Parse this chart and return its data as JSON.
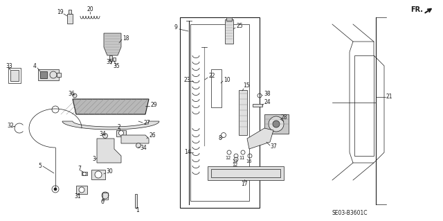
{
  "bg_color": "#ffffff",
  "fig_width": 6.4,
  "fig_height": 3.19,
  "dpi": 100,
  "diagram_code": "SE03-B3601C",
  "line_color": "#1a1a1a",
  "gray_fill": "#c8c8c8",
  "dark_gray": "#888888",
  "light_gray": "#e0e0e0"
}
